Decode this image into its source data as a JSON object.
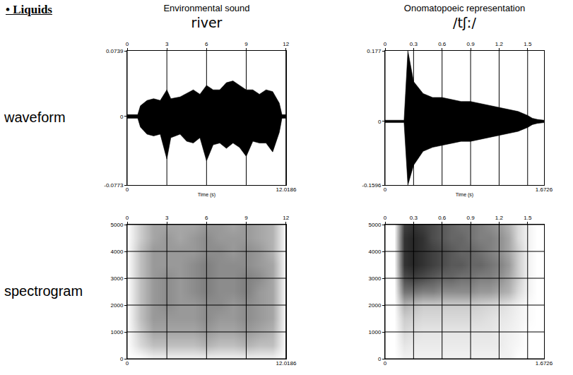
{
  "heading": "• Liquids",
  "columns": [
    {
      "label": "Environmental sound",
      "name": "river"
    },
    {
      "label": "Onomatopoeic representation",
      "name": "/tʃː/"
    }
  ],
  "rows": [
    "waveform",
    "spectrogram"
  ],
  "chart_data": [
    {
      "type": "area",
      "color": "#000000",
      "grid": "x",
      "x_label": "Time (s)",
      "xlim": [
        0,
        12.0186
      ],
      "xticks": [
        0,
        3,
        6,
        9,
        12
      ],
      "x2ticks": [
        0,
        12.0186
      ],
      "ylim": [
        -0.0773,
        0.0739
      ],
      "yticks": [
        -0.0773,
        0,
        0.0739
      ],
      "x": [
        0,
        0.8,
        1.0,
        1.5,
        2.0,
        2.5,
        3.0,
        3.3,
        4.0,
        4.5,
        5.0,
        5.5,
        6.0,
        6.5,
        7.0,
        7.5,
        8.0,
        8.5,
        9.0,
        9.5,
        10.0,
        10.5,
        11.0,
        11.5,
        11.7,
        12.0186
      ],
      "upper": [
        0.002,
        0.002,
        0.012,
        0.018,
        0.02,
        0.018,
        0.03,
        0.02,
        0.022,
        0.026,
        0.03,
        0.025,
        0.035,
        0.03,
        0.03,
        0.038,
        0.04,
        0.035,
        0.03,
        0.03,
        0.025,
        0.03,
        0.028,
        0.015,
        0.002,
        0.002
      ],
      "lower": [
        -0.002,
        -0.002,
        -0.012,
        -0.02,
        -0.022,
        -0.02,
        -0.048,
        -0.024,
        -0.02,
        -0.028,
        -0.03,
        -0.024,
        -0.05,
        -0.032,
        -0.03,
        -0.036,
        -0.03,
        -0.035,
        -0.045,
        -0.028,
        -0.03,
        -0.03,
        -0.04,
        -0.018,
        -0.002,
        -0.002
      ]
    },
    {
      "type": "area",
      "color": "#000000",
      "grid": "x",
      "x_label": "Time (s)",
      "xlim": [
        0,
        1.6726
      ],
      "xticks": [
        0,
        0.3,
        0.6,
        0.9,
        1.2,
        1.5
      ],
      "x2ticks": [
        0,
        1.6726
      ],
      "ylim": [
        -0.1596,
        0.177
      ],
      "yticks": [
        -0.1596,
        0,
        0.177
      ],
      "x": [
        0,
        0.2,
        0.24,
        0.3,
        0.4,
        0.5,
        0.6,
        0.7,
        0.8,
        0.9,
        1.0,
        1.1,
        1.2,
        1.3,
        1.4,
        1.5,
        1.55,
        1.6,
        1.6726
      ],
      "upper": [
        0.003,
        0.003,
        0.177,
        0.1,
        0.07,
        0.06,
        0.06,
        0.055,
        0.05,
        0.05,
        0.045,
        0.04,
        0.035,
        0.03,
        0.025,
        0.015,
        0.008,
        0.005,
        0.003
      ],
      "lower": [
        -0.003,
        -0.003,
        -0.1596,
        -0.11,
        -0.075,
        -0.065,
        -0.06,
        -0.055,
        -0.05,
        -0.05,
        -0.045,
        -0.04,
        -0.035,
        -0.03,
        -0.025,
        -0.015,
        -0.008,
        -0.005,
        -0.003
      ]
    },
    {
      "type": "heatmap",
      "grid": true,
      "xlim": [
        0,
        12.0186
      ],
      "xticks": [
        0,
        3,
        6,
        9,
        12
      ],
      "x2ticks": [
        0,
        12.0186
      ],
      "ylim": [
        0,
        5000
      ],
      "yticks": [
        0,
        1000,
        2000,
        3000,
        4000,
        5000
      ],
      "zlim": [
        0,
        1
      ],
      "x": [
        0,
        1,
        2,
        3,
        4,
        5,
        6,
        7,
        8,
        9,
        10,
        11,
        12
      ],
      "y": [
        0,
        500,
        1000,
        1500,
        2000,
        2500,
        3000,
        3500,
        4000,
        4500,
        5000
      ],
      "z": [
        [
          0,
          0,
          0.05,
          0.05,
          0.05,
          0.05,
          0.05,
          0.05,
          0.05,
          0.05,
          0.05,
          0.05,
          0
        ],
        [
          0,
          0.15,
          0.25,
          0.25,
          0.25,
          0.25,
          0.3,
          0.25,
          0.25,
          0.3,
          0.25,
          0.25,
          0
        ],
        [
          0,
          0.2,
          0.35,
          0.35,
          0.35,
          0.35,
          0.4,
          0.35,
          0.35,
          0.4,
          0.35,
          0.3,
          0
        ],
        [
          0,
          0.25,
          0.4,
          0.4,
          0.4,
          0.4,
          0.45,
          0.4,
          0.4,
          0.45,
          0.4,
          0.35,
          0
        ],
        [
          0,
          0.25,
          0.4,
          0.45,
          0.4,
          0.4,
          0.45,
          0.45,
          0.4,
          0.45,
          0.4,
          0.35,
          0
        ],
        [
          0,
          0.25,
          0.4,
          0.45,
          0.4,
          0.45,
          0.5,
          0.45,
          0.45,
          0.5,
          0.4,
          0.35,
          0
        ],
        [
          0,
          0.25,
          0.4,
          0.45,
          0.4,
          0.45,
          0.5,
          0.45,
          0.45,
          0.5,
          0.45,
          0.35,
          0
        ],
        [
          0,
          0.25,
          0.4,
          0.4,
          0.4,
          0.45,
          0.5,
          0.45,
          0.45,
          0.45,
          0.4,
          0.35,
          0
        ],
        [
          0,
          0.25,
          0.4,
          0.4,
          0.4,
          0.4,
          0.45,
          0.45,
          0.4,
          0.45,
          0.4,
          0.3,
          0
        ],
        [
          0,
          0.2,
          0.35,
          0.4,
          0.35,
          0.4,
          0.45,
          0.4,
          0.4,
          0.4,
          0.35,
          0.3,
          0
        ],
        [
          0,
          0.2,
          0.35,
          0.35,
          0.35,
          0.35,
          0.4,
          0.4,
          0.35,
          0.4,
          0.35,
          0.3,
          0
        ]
      ]
    },
    {
      "type": "heatmap",
      "grid": true,
      "xlim": [
        0,
        1.6726
      ],
      "xticks": [
        0,
        0.3,
        0.6,
        0.9,
        1.2,
        1.5
      ],
      "x2ticks": [
        0,
        1.6726
      ],
      "ylim": [
        0,
        5000
      ],
      "yticks": [
        0,
        1000,
        2000,
        3000,
        4000,
        5000
      ],
      "zlim": [
        0,
        1
      ],
      "x": [
        0,
        0.1,
        0.2,
        0.3,
        0.4,
        0.5,
        0.6,
        0.7,
        0.8,
        0.9,
        1.0,
        1.1,
        1.2,
        1.3,
        1.4,
        1.5,
        1.6
      ],
      "y": [
        0,
        500,
        1000,
        1500,
        2000,
        2500,
        3000,
        3500,
        4000,
        4500,
        5000
      ],
      "z": [
        [
          0,
          0,
          0.05,
          0.05,
          0.05,
          0.05,
          0.05,
          0.05,
          0.05,
          0.05,
          0.05,
          0.05,
          0.05,
          0.05,
          0,
          0,
          0
        ],
        [
          0,
          0,
          0.1,
          0.08,
          0.08,
          0.08,
          0.08,
          0.08,
          0.08,
          0.08,
          0.08,
          0.08,
          0.08,
          0.05,
          0.03,
          0,
          0
        ],
        [
          0,
          0,
          0.15,
          0.12,
          0.1,
          0.1,
          0.1,
          0.1,
          0.1,
          0.1,
          0.1,
          0.1,
          0.08,
          0.06,
          0.04,
          0,
          0
        ],
        [
          0,
          0,
          0.2,
          0.18,
          0.15,
          0.15,
          0.15,
          0.15,
          0.15,
          0.15,
          0.14,
          0.12,
          0.1,
          0.08,
          0.05,
          0.02,
          0
        ],
        [
          0,
          0,
          0.3,
          0.25,
          0.2,
          0.2,
          0.2,
          0.2,
          0.2,
          0.2,
          0.18,
          0.16,
          0.14,
          0.1,
          0.06,
          0.02,
          0
        ],
        [
          0,
          0,
          0.55,
          0.55,
          0.5,
          0.5,
          0.45,
          0.45,
          0.45,
          0.45,
          0.4,
          0.4,
          0.35,
          0.3,
          0.15,
          0.05,
          0
        ],
        [
          0,
          0,
          0.7,
          0.75,
          0.7,
          0.65,
          0.6,
          0.6,
          0.55,
          0.55,
          0.5,
          0.5,
          0.45,
          0.35,
          0.2,
          0.05,
          0
        ],
        [
          0,
          0,
          0.8,
          0.85,
          0.8,
          0.75,
          0.7,
          0.65,
          0.65,
          0.6,
          0.6,
          0.55,
          0.5,
          0.4,
          0.2,
          0.05,
          0
        ],
        [
          0,
          0,
          0.8,
          0.85,
          0.8,
          0.75,
          0.7,
          0.65,
          0.6,
          0.6,
          0.55,
          0.5,
          0.45,
          0.35,
          0.2,
          0.05,
          0
        ],
        [
          0,
          0,
          0.8,
          0.85,
          0.8,
          0.7,
          0.65,
          0.6,
          0.6,
          0.55,
          0.5,
          0.5,
          0.45,
          0.35,
          0.15,
          0.05,
          0
        ],
        [
          0,
          0,
          0.75,
          0.8,
          0.75,
          0.7,
          0.65,
          0.6,
          0.55,
          0.55,
          0.5,
          0.45,
          0.4,
          0.3,
          0.15,
          0.05,
          0
        ]
      ]
    }
  ]
}
